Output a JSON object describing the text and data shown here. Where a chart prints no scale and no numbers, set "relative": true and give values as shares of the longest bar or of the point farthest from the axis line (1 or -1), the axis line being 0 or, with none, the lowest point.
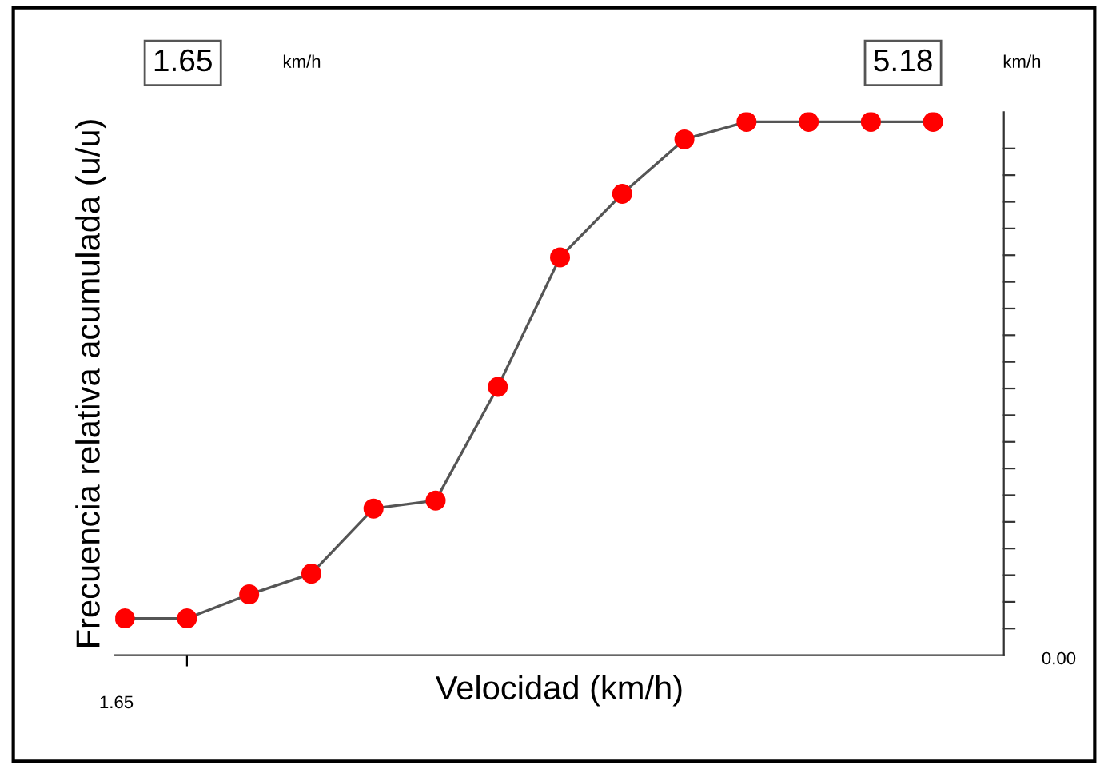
{
  "chart_data": {
    "type": "line",
    "relative": true,
    "xlabel": "Velocidad (km/h)",
    "ylabel": "Frecuencia relativa acumulada (u/u)",
    "categories": [
      null,
      null,
      null,
      null,
      null,
      null,
      null,
      null,
      null,
      null,
      null,
      null,
      null,
      null
    ],
    "series": [
      {
        "color": "#555555",
        "colors": [
          "#ff0000",
          "#ff0000",
          "#ff0000",
          "#ff0000",
          "#ff0000",
          "#ff0000",
          "#ff0000",
          "#ff0000",
          "#ff0000",
          "#ff0000",
          "#ff0000",
          "#ff0000",
          "#ff0000",
          "#ff0000"
        ],
        "values": [
          0.069,
          0.069,
          0.114,
          0.153,
          0.275,
          0.29,
          0.503,
          0.746,
          0.865,
          0.967,
          1,
          1,
          1,
          1
        ]
      }
    ],
    "marker": "circle",
    "line_style": "solid",
    "grid": false,
    "legend": false,
    "annotations": [
      "1.65",
      "km/h",
      "5.18",
      "km/h",
      "0.00",
      "1.65"
    ]
  }
}
